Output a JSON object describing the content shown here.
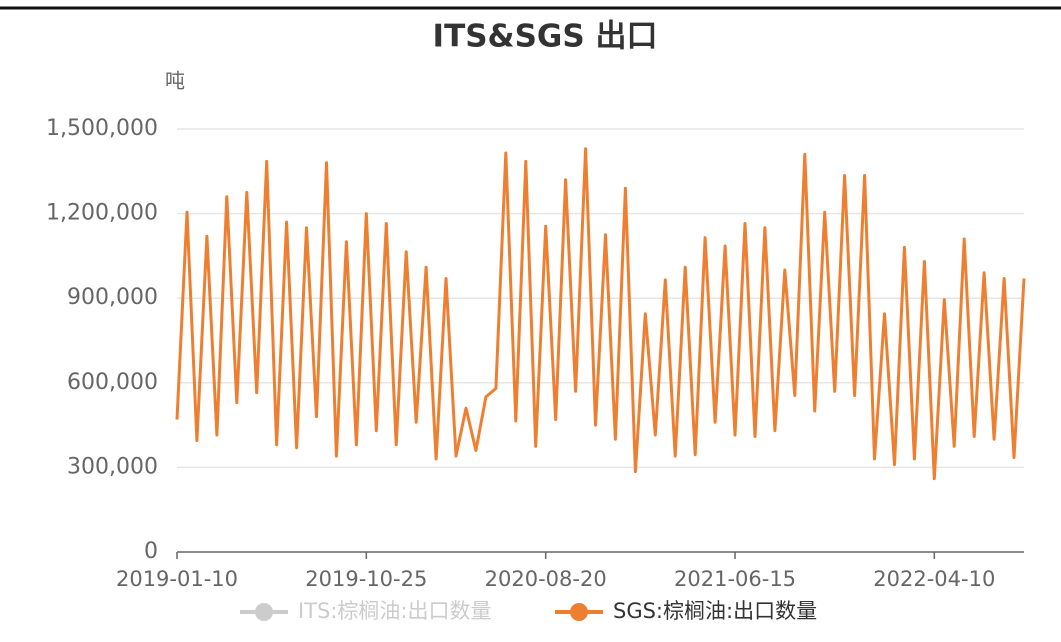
{
  "chart_data": {
    "type": "line",
    "title": "ITS&SGS 出口",
    "y_label": "吨",
    "categories": [
      "2019-01-10",
      null,
      null,
      null,
      null,
      null,
      null,
      null,
      null,
      null,
      null,
      null,
      null,
      null,
      null,
      null,
      null,
      null,
      null,
      "2019-10-25",
      null,
      null,
      null,
      null,
      null,
      null,
      null,
      null,
      null,
      null,
      null,
      null,
      null,
      null,
      null,
      null,
      null,
      "2020-08-20",
      null,
      null,
      null,
      null,
      null,
      null,
      null,
      null,
      null,
      null,
      null,
      null,
      null,
      null,
      null,
      null,
      null,
      null,
      "2021-06-15",
      null,
      null,
      null,
      null,
      null,
      null,
      null,
      null,
      null,
      null,
      null,
      null,
      null,
      null,
      null,
      null,
      null,
      null,
      null,
      "2022-04-10",
      null,
      null,
      null,
      null,
      null,
      null,
      null,
      null,
      null
    ],
    "series": [
      {
        "name": "ITS:棕榈油:出口数量",
        "color": "#cccccc",
        "hidden": true,
        "values": [
          null,
          null,
          null,
          null,
          null,
          null,
          null,
          null,
          null,
          null,
          null,
          null,
          null,
          null,
          null,
          null,
          null,
          null,
          null,
          null,
          null,
          null,
          null,
          null,
          null,
          null,
          null,
          null,
          null,
          null,
          null,
          null,
          null,
          null,
          null,
          null,
          null,
          null,
          null,
          null,
          null,
          null,
          null,
          null,
          null,
          null,
          null,
          null,
          null,
          null,
          null,
          null,
          null,
          null,
          null,
          null,
          null,
          null,
          null,
          null,
          null,
          null,
          null,
          null,
          null,
          null,
          null,
          null,
          null,
          null,
          null,
          null,
          null,
          null,
          null,
          null,
          null,
          null,
          null,
          null,
          null,
          null,
          null,
          null,
          null,
          null
        ]
      },
      {
        "name": "SGS:棕榈油:出口数量",
        "color": "#ee7f31",
        "values": [
          470000,
          1205000,
          395000,
          1120000,
          415000,
          1260000,
          530000,
          1275000,
          565000,
          1385000,
          380000,
          1170000,
          370000,
          1150000,
          480000,
          1380000,
          340000,
          1100000,
          380000,
          1200000,
          430000,
          1165000,
          380000,
          1065000,
          460000,
          1010000,
          330000,
          970000,
          340000,
          510000,
          360000,
          550000,
          580000,
          1415000,
          465000,
          1385000,
          375000,
          1155000,
          470000,
          1320000,
          570000,
          1430000,
          450000,
          1125000,
          400000,
          1290000,
          285000,
          845000,
          415000,
          965000,
          340000,
          1010000,
          345000,
          1115000,
          460000,
          1085000,
          415000,
          1165000,
          410000,
          1150000,
          430000,
          1000000,
          555000,
          1410000,
          500000,
          1205000,
          570000,
          1335000,
          555000,
          1335000,
          330000,
          845000,
          310000,
          1080000,
          330000,
          1030000,
          260000,
          895000,
          375000,
          1110000,
          410000,
          990000,
          400000,
          970000,
          335000,
          970000
        ]
      }
    ],
    "ylim": [
      0,
      1500000
    ],
    "yticks": [
      0,
      {
        "value": 300000,
        "label": "300,000"
      },
      {
        "value": 600000,
        "label": "600,000"
      },
      {
        "value": 900000,
        "label": "900,000"
      },
      {
        "value": 1200000,
        "label": "1,200,000"
      },
      {
        "value": 1500000,
        "label": "1,500,000"
      }
    ],
    "grid": true
  }
}
